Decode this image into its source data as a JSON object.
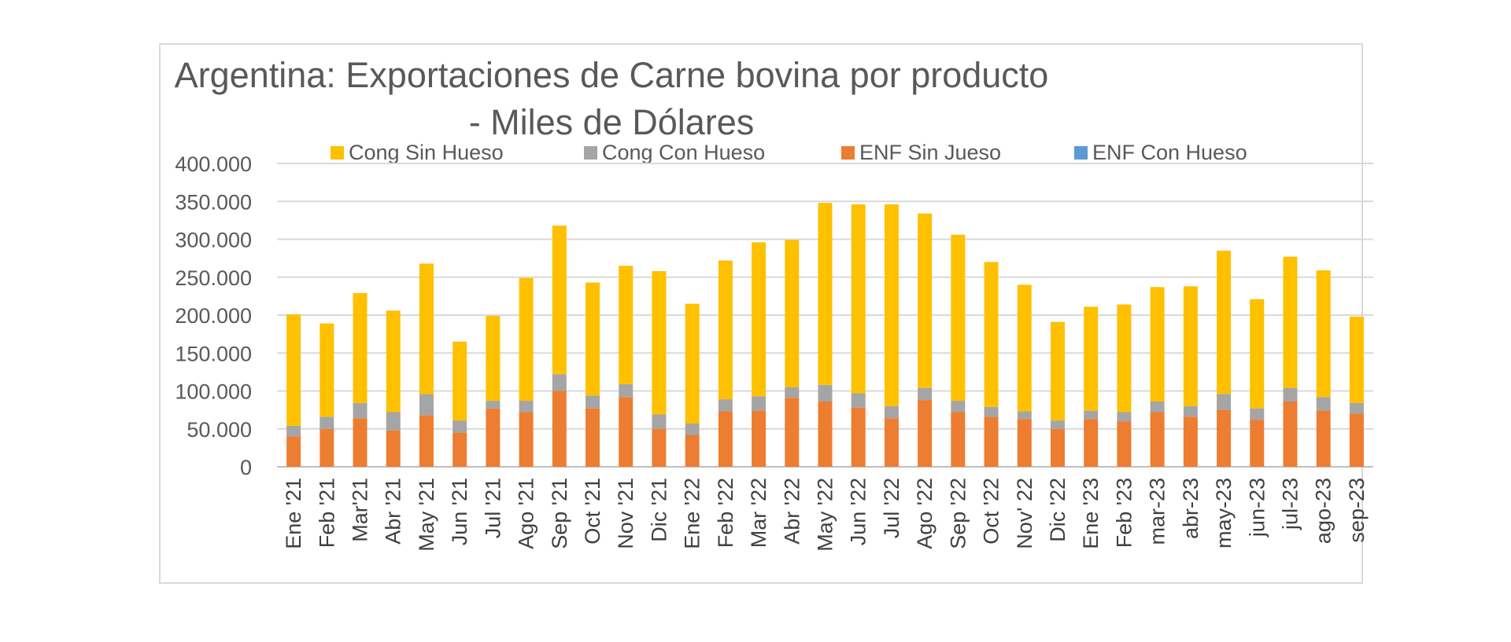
{
  "chart_data": {
    "type": "bar",
    "stacked": true,
    "title": "Argentina: Exportaciones de Carne bovina por producto",
    "subtitle": "- Miles de Dólares",
    "xlabel": "",
    "ylabel": "",
    "ylim": [
      0,
      400000
    ],
    "yticks": [
      "0",
      "50.000",
      "100.000",
      "150.000",
      "200.000",
      "250.000",
      "300.000",
      "350.000",
      "400.000"
    ],
    "grid": true,
    "legend_position": "top",
    "categories": [
      "Ene '21",
      "Feb '21",
      "Mar'21",
      "Abr '21",
      "May '21",
      "Jun '21",
      "Jul '21",
      "Ago '21",
      "Sep '21",
      "Oct '21",
      "Nov '21",
      "Dic '21",
      "Ene '22",
      "Feb '22",
      "Mar '22",
      "Abr '22",
      "May '22",
      "Jun '22",
      "Jul '22",
      "Ago '22",
      "Sep '22",
      "Oct '22",
      "Nov' 22",
      "Dic '22",
      "Ene '23",
      "Feb '23",
      "mar-23",
      "abr-23",
      "may-23",
      "jun-23",
      "jul-23",
      "ago-23",
      "sep-23"
    ],
    "series": [
      {
        "name": "ENF Sin Jueso",
        "color": "#ed7d31",
        "values": [
          40000,
          50000,
          64000,
          48000,
          68000,
          45000,
          77000,
          72000,
          100000,
          77000,
          92000,
          50000,
          42000,
          73000,
          74000,
          91000,
          86000,
          78000,
          64000,
          88000,
          72000,
          66000,
          63000,
          50000,
          63000,
          60000,
          72000,
          66000,
          75000,
          62000,
          86000,
          74000,
          70000
        ]
      },
      {
        "name": "ENF Con Hueso",
        "color": "#5b9bd5",
        "values": [
          0,
          0,
          0,
          0,
          0,
          0,
          0,
          0,
          0,
          0,
          0,
          0,
          0,
          0,
          0,
          0,
          0,
          0,
          0,
          0,
          0,
          0,
          0,
          0,
          0,
          0,
          0,
          0,
          0,
          0,
          0,
          0,
          0
        ]
      },
      {
        "name": "Cong Con Hueso",
        "color": "#a5a5a5",
        "values": [
          14000,
          16000,
          20000,
          24000,
          28000,
          16000,
          10000,
          15000,
          22000,
          17000,
          17000,
          19000,
          15000,
          16000,
          19000,
          14000,
          22000,
          19000,
          16000,
          16000,
          15000,
          13000,
          10000,
          11000,
          11000,
          12000,
          14000,
          14000,
          21000,
          15000,
          18000,
          18000,
          14000
        ]
      },
      {
        "name": "Cong Sin Hueso",
        "color": "#ffc000",
        "values": [
          147000,
          123000,
          145000,
          134000,
          172000,
          104000,
          112000,
          162000,
          196000,
          149000,
          156000,
          189000,
          158000,
          183000,
          203000,
          194000,
          240000,
          249000,
          266000,
          230000,
          219000,
          191000,
          167000,
          130000,
          137000,
          142000,
          151000,
          158000,
          189000,
          144000,
          173000,
          167000,
          114000
        ]
      }
    ]
  },
  "legend": [
    {
      "label": "Cong Sin Hueso",
      "color": "#ffc000"
    },
    {
      "label": "Cong Con Hueso",
      "color": "#a5a5a5"
    },
    {
      "label": "ENF Sin Jueso",
      "color": "#ed7d31"
    },
    {
      "label": "ENF Con Hueso",
      "color": "#5b9bd5"
    }
  ]
}
